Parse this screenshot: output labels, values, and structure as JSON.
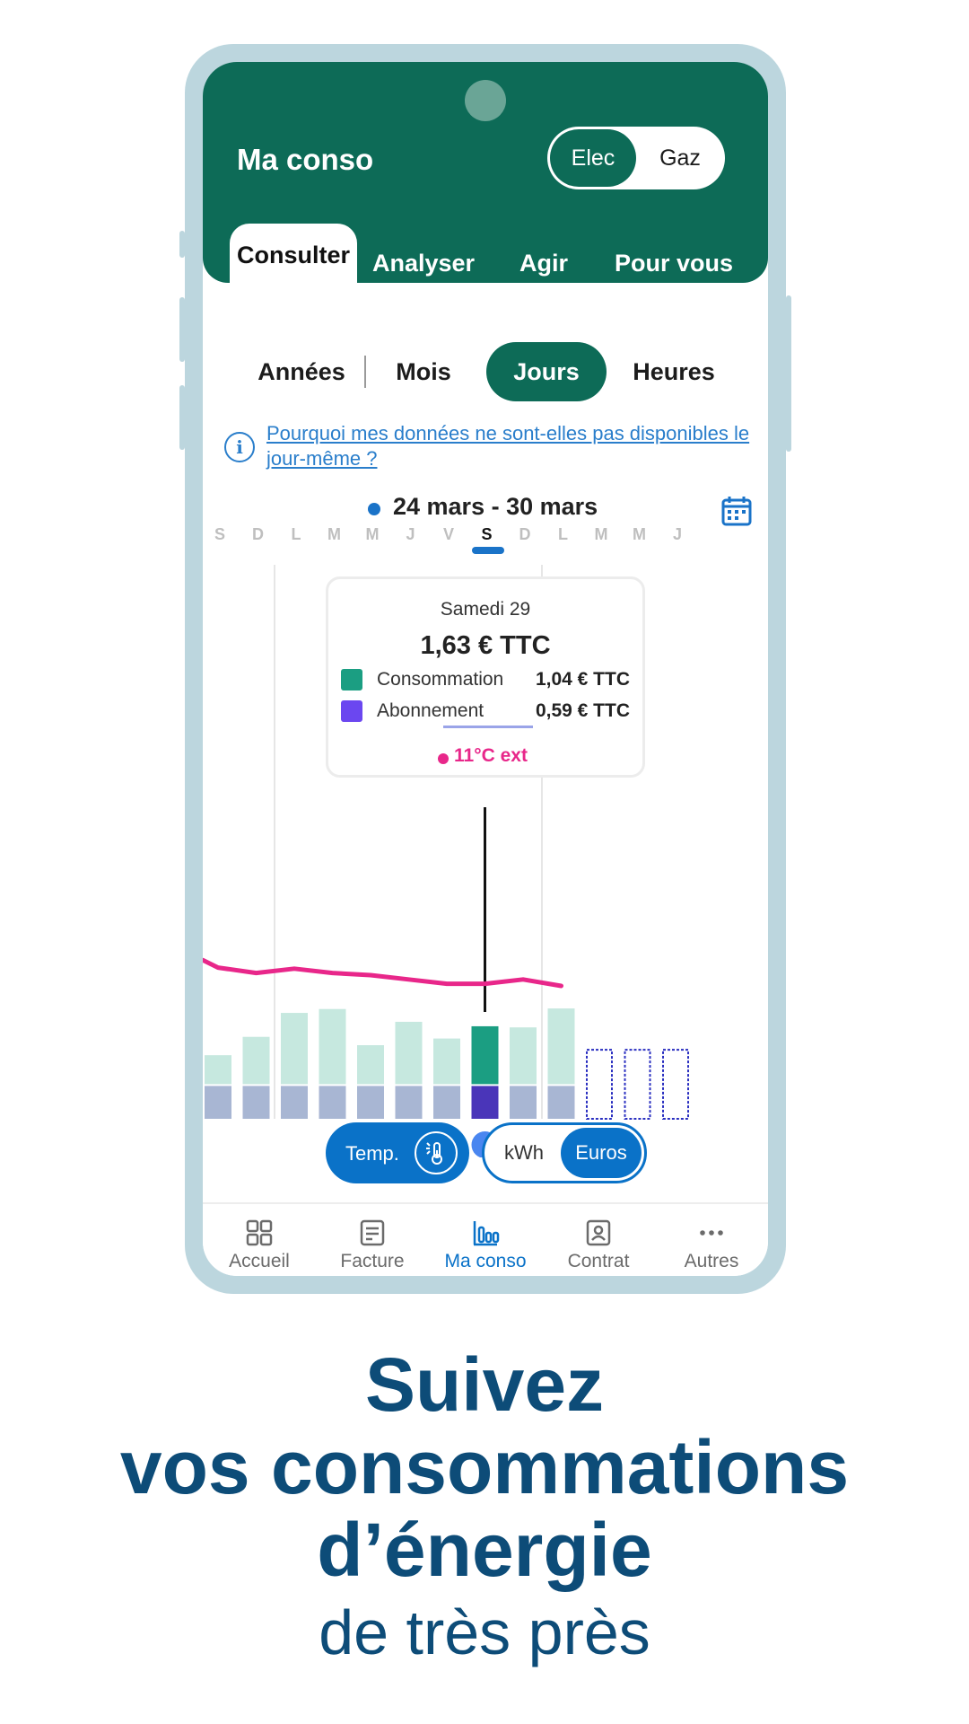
{
  "app": {
    "title": "Ma conso",
    "energy_toggle": {
      "active": "Elec",
      "inactive": "Gaz"
    }
  },
  "tabs": [
    "Consulter",
    "Analyser",
    "Agir",
    "Pour vous"
  ],
  "periods": [
    "Années",
    "Mois",
    "Jours",
    "Heures"
  ],
  "info_link": "Pourquoi mes données ne sont-elles pas disponibles le jour-même ?",
  "date_range": "24 mars - 30 mars",
  "days": [
    "S",
    "D",
    "L",
    "M",
    "M",
    "J",
    "V",
    "S",
    "D",
    "L",
    "M",
    "M",
    "J"
  ],
  "tooltip": {
    "date": "Samedi 29",
    "total": "1,63 € TTC",
    "consumption_label": "Consommation",
    "consumption_value": "1,04 € TTC",
    "subscription_label": "Abonnement",
    "subscription_value": "0,59 € TTC",
    "temperature": "11°C ext"
  },
  "chart_data": {
    "type": "bar",
    "stacked": true,
    "categories": [
      "S",
      "D",
      "L",
      "M",
      "M",
      "J",
      "V",
      "S",
      "D",
      "L",
      "M",
      "M",
      "J"
    ],
    "series": [
      {
        "name": "Abonnement",
        "values": [
          0.59,
          0.59,
          0.59,
          0.59,
          0.59,
          0.59,
          0.59,
          0.59,
          0.59,
          0.59,
          null,
          null,
          null
        ]
      },
      {
        "name": "Consommation",
        "values": [
          0.52,
          0.85,
          1.28,
          1.35,
          0.7,
          1.12,
          0.82,
          1.04,
          1.02,
          1.36,
          null,
          null,
          null
        ]
      }
    ],
    "temperature_line": [
      12.5,
      12.0,
      12.4,
      12.0,
      11.8,
      11.4,
      11.0,
      11.0,
      11.4,
      10.8
    ],
    "selected_index": 7,
    "colors": {
      "consumption": "#c6e8df",
      "consumption_selected": "#1b9e82",
      "subscription": "#a8b6d3",
      "subscription_selected": "#4a35b9",
      "temperature": "#e8278a",
      "placeholder": "#2a2fc0"
    }
  },
  "controls": {
    "temp_label": "Temp.",
    "unit_kwh": "kWh",
    "unit_euros": "Euros"
  },
  "nav": [
    {
      "label": "Accueil",
      "icon": "grid-icon"
    },
    {
      "label": "Facture",
      "icon": "invoice-icon"
    },
    {
      "label": "Ma conso",
      "icon": "bar-chart-icon"
    },
    {
      "label": "Contrat",
      "icon": "contract-icon"
    },
    {
      "label": "Autres",
      "icon": "more-icon"
    }
  ],
  "headline": {
    "line1": "Suivez",
    "line2": "vos consommations",
    "line3": "d’énergie",
    "line4": "de très près"
  }
}
